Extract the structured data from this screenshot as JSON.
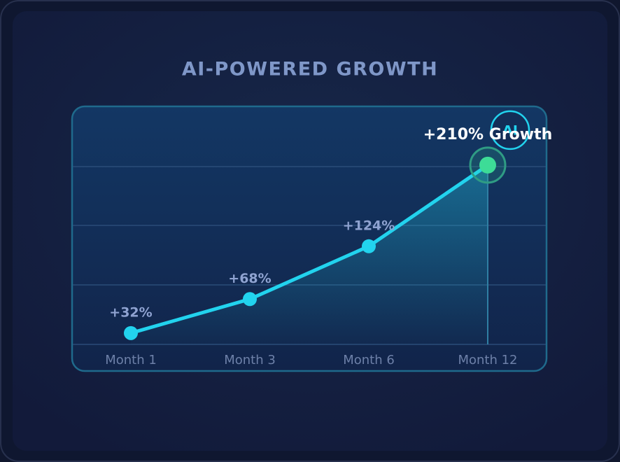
{
  "chart_data": {
    "type": "line",
    "title": "AI-POWERED GROWTH",
    "badge": "AI",
    "categories": [
      "Month 1",
      "Month 3",
      "Month 6",
      "Month 12"
    ],
    "values": [
      32,
      68,
      124,
      210
    ],
    "value_labels": [
      "+32%",
      "+68%",
      "+124%",
      "+210% Growth"
    ],
    "color": "#22d3ee",
    "highlight_color": "#3ddc97",
    "ylim": [
      20,
      270
    ]
  }
}
